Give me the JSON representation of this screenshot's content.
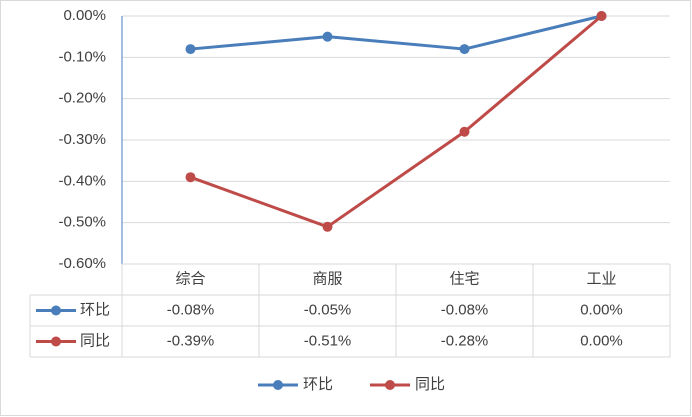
{
  "chart_data": {
    "type": "line",
    "categories": [
      "综合",
      "商服",
      "住宅",
      "工业"
    ],
    "series": [
      {
        "name": "环比",
        "color": "#4a7ebb",
        "values": [
          -0.08,
          -0.05,
          -0.08,
          0.0
        ],
        "value_labels": [
          "-0.08%",
          "-0.05%",
          "-0.08%",
          "0.00%"
        ]
      },
      {
        "name": "同比",
        "color": "#be4b48",
        "values": [
          -0.39,
          -0.51,
          -0.28,
          0.0
        ],
        "value_labels": [
          "-0.39%",
          "-0.51%",
          "-0.28%",
          "0.00%"
        ]
      }
    ],
    "ylim": [
      -0.6,
      0
    ],
    "yticks": [
      {
        "value": 0,
        "label": "0.00%"
      },
      {
        "value": -0.1,
        "label": "-0.10%"
      },
      {
        "value": -0.2,
        "label": "-0.20%"
      },
      {
        "value": -0.3,
        "label": "-0.30%"
      },
      {
        "value": -0.4,
        "label": "-0.40%"
      },
      {
        "value": -0.5,
        "label": "-0.50%"
      },
      {
        "value": -0.6,
        "label": "-0.60%"
      }
    ],
    "grid": true,
    "legend": "bottom",
    "data_table": true
  }
}
